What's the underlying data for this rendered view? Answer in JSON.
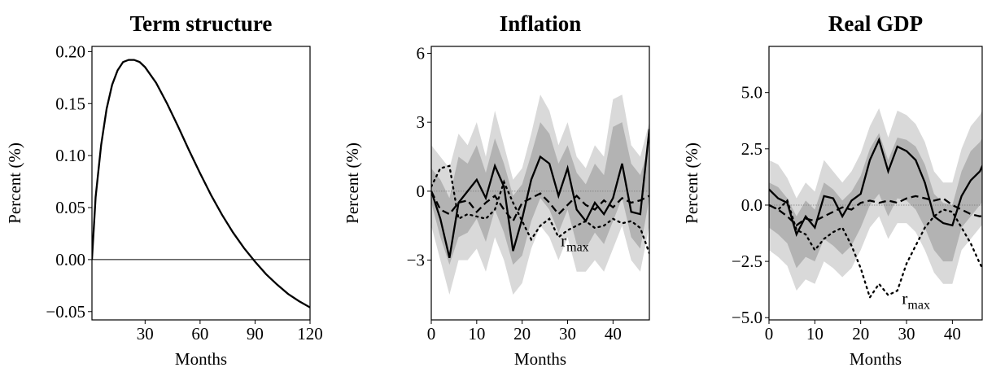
{
  "chart_data": [
    {
      "type": "line",
      "title": "Term structure",
      "xlabel": "Months",
      "ylabel": "Percent (%)",
      "x": [
        1,
        3,
        6,
        9,
        12,
        15,
        18,
        21,
        24,
        27,
        30,
        36,
        42,
        48,
        54,
        60,
        66,
        72,
        78,
        84,
        90,
        96,
        102,
        108,
        114,
        120
      ],
      "xlim": [
        1,
        120
      ],
      "ylim": [
        -0.058,
        0.205
      ],
      "xticks": [
        30,
        60,
        90,
        120
      ],
      "yticks": [
        {
          "value": -0.05,
          "label": "−0.05"
        },
        {
          "value": 0,
          "label": "0.00"
        },
        {
          "value": 0.05,
          "label": "0.05"
        },
        {
          "value": 0.1,
          "label": "0.10"
        },
        {
          "value": 0.15,
          "label": "0.15"
        },
        {
          "value": 0.2,
          "label": "0.20"
        }
      ],
      "zero_line": "solid",
      "series": [
        {
          "style": "solid",
          "color": "#000000",
          "values": [
            0,
            0.06,
            0.11,
            0.145,
            0.168,
            0.182,
            0.19,
            0.192,
            0.192,
            0.19,
            0.185,
            0.17,
            0.15,
            0.128,
            0.105,
            0.083,
            0.062,
            0.043,
            0.026,
            0.011,
            -0.002,
            -0.014,
            -0.024,
            -0.033,
            -0.04,
            -0.046
          ]
        }
      ]
    },
    {
      "type": "line",
      "title": "Inflation",
      "xlabel": "Months",
      "ylabel": "Percent (%)",
      "x": [
        0,
        2,
        4,
        6,
        8,
        10,
        12,
        14,
        16,
        18,
        20,
        22,
        24,
        26,
        28,
        30,
        32,
        34,
        36,
        38,
        40,
        42,
        44,
        46,
        48
      ],
      "xlim": [
        0,
        48
      ],
      "ylim": [
        -5.6,
        6.3
      ],
      "xticks": [
        0,
        10,
        20,
        30,
        40
      ],
      "yticks": [
        {
          "value": -3,
          "label": "−3"
        },
        0,
        3,
        6
      ],
      "zero_line": "dotted",
      "bands": [
        {
          "color": "#d9d9d9",
          "upper": [
            2.0,
            1.5,
            1.0,
            2.5,
            2.0,
            3.0,
            1.5,
            3.5,
            2.0,
            0.5,
            1.0,
            2.5,
            4.2,
            3.5,
            2.0,
            3.0,
            1.5,
            1.0,
            2.0,
            1.5,
            4.0,
            4.2,
            2.0,
            1.5,
            3.0
          ],
          "lower": [
            -1.5,
            -3,
            -4.5,
            -3,
            -3,
            -2.5,
            -3.5,
            -2,
            -3,
            -4.5,
            -4,
            -2.5,
            -1.5,
            -2,
            -3,
            -2,
            -3.5,
            -3.5,
            -3,
            -3.5,
            -2.5,
            -1.5,
            -3,
            -3.5,
            -1.5
          ]
        },
        {
          "color": "#b3b3b3",
          "upper": [
            1.0,
            0.5,
            -0.3,
            1.5,
            1.2,
            2.0,
            0.8,
            2.3,
            1.2,
            -0.2,
            0.3,
            1.6,
            3.0,
            2.5,
            1.2,
            2.0,
            0.8,
            0.3,
            1.2,
            0.7,
            2.8,
            3.0,
            1.2,
            0.7,
            2.0
          ],
          "lower": [
            -0.5,
            -2,
            -3.2,
            -2,
            -1.8,
            -1.2,
            -2.2,
            -0.8,
            -1.8,
            -3.2,
            -2.8,
            -1.3,
            -0.3,
            -0.8,
            -1.8,
            -0.8,
            -2.3,
            -2.5,
            -1.8,
            -2.3,
            -1.3,
            -0.3,
            -2,
            -2.5,
            -0.3
          ]
        }
      ],
      "series": [
        {
          "style": "solid",
          "color": "#000000",
          "values": [
            0,
            -1.2,
            -2.9,
            -0.5,
            0,
            0.5,
            -0.3,
            1.1,
            0.2,
            -2.6,
            -1.2,
            0.5,
            1.5,
            1.2,
            -0.2,
            1.0,
            -0.8,
            -1.3,
            -0.5,
            -1.0,
            -0.3,
            1.2,
            -0.9,
            -1.0,
            2.7
          ]
        },
        {
          "style": "dashed",
          "color": "#000000",
          "values": [
            0,
            -0.8,
            -1.0,
            -0.5,
            -0.4,
            -0.9,
            -0.5,
            -0.2,
            -0.8,
            -1.3,
            -0.5,
            -0.3,
            -0.1,
            -0.5,
            -1.0,
            -0.6,
            -0.2,
            -0.6,
            -0.8,
            -0.4,
            -0.7,
            -0.3,
            -0.5,
            -0.4,
            -0.2
          ]
        },
        {
          "style": "dotted",
          "color": "#000000",
          "values": [
            0.2,
            1.0,
            1.1,
            -1.2,
            -1.0,
            -1.1,
            -1.2,
            -0.8,
            0.4,
            -0.5,
            -1.3,
            -2.1,
            -1.5,
            -1.2,
            -2.0,
            -1.7,
            -1.5,
            -1.3,
            -1.6,
            -1.5,
            -1.2,
            -1.4,
            -1.3,
            -1.6,
            -2.7
          ]
        }
      ],
      "annotation": {
        "text": "r",
        "subscript": "max"
      }
    },
    {
      "type": "line",
      "title": "Real GDP",
      "xlabel": "Months",
      "ylabel": "Percent (%)",
      "x": [
        0,
        2,
        4,
        6,
        8,
        10,
        12,
        14,
        16,
        18,
        20,
        22,
        24,
        26,
        28,
        30,
        32,
        34,
        36,
        38,
        40,
        42,
        44,
        46,
        48
      ],
      "xlim": [
        0,
        46.5
      ],
      "ylim": [
        -5.1,
        7.05
      ],
      "xticks": [
        0,
        10,
        20,
        30,
        40
      ],
      "yticks": [
        {
          "value": -5,
          "label": "−5.0"
        },
        {
          "value": -2.5,
          "label": "−2.5"
        },
        {
          "value": 0,
          "label": "0.0"
        },
        {
          "value": 2.5,
          "label": "2.5"
        },
        {
          "value": 5,
          "label": "5.0"
        }
      ],
      "zero_line": "dotted",
      "bands": [
        {
          "color": "#d9d9d9",
          "upper": [
            2.0,
            1.8,
            1.2,
            0.3,
            1.0,
            0.6,
            2.0,
            1.5,
            1.0,
            1.5,
            2.3,
            3.5,
            4.3,
            3.0,
            4.2,
            4.0,
            3.6,
            2.8,
            1.5,
            1.0,
            1.0,
            2.5,
            3.5,
            4.0,
            4.8
          ],
          "lower": [
            -2.0,
            -2.3,
            -2.7,
            -3.8,
            -3.3,
            -3.5,
            -2.5,
            -2.8,
            -3.2,
            -2.8,
            -2.0,
            -1.0,
            -0.5,
            -1.5,
            -0.8,
            -0.8,
            -1.2,
            -2.0,
            -3.0,
            -3.5,
            -3.5,
            -2.0,
            -1.5,
            -1.0,
            -0.5
          ]
        },
        {
          "color": "#b3b3b3",
          "upper": [
            1.0,
            0.8,
            0.3,
            -0.5,
            0.2,
            -0.2,
            1.0,
            0.7,
            0.2,
            0.6,
            1.3,
            2.5,
            3.2,
            2.0,
            3.0,
            2.9,
            2.6,
            1.8,
            0.5,
            0.1,
            0.0,
            1.5,
            2.4,
            2.8,
            3.5
          ],
          "lower": [
            -1.0,
            -1.3,
            -1.7,
            -2.8,
            -2.3,
            -2.5,
            -1.5,
            -1.8,
            -2.2,
            -1.8,
            -1.0,
            0.0,
            0.5,
            -0.5,
            0.3,
            0.2,
            -0.2,
            -1.0,
            -2.0,
            -2.5,
            -2.5,
            -1.0,
            -0.5,
            0.0,
            0.5
          ]
        }
      ],
      "series": [
        {
          "style": "solid",
          "color": "#000000",
          "values": [
            0.7,
            0.3,
            0.1,
            -1.3,
            -0.5,
            -1.0,
            0.4,
            0.3,
            -0.5,
            0.2,
            0.5,
            2.0,
            2.9,
            1.5,
            2.6,
            2.4,
            2.0,
            1.0,
            -0.5,
            -0.8,
            -0.9,
            0.4,
            1.1,
            1.5,
            2.4
          ]
        },
        {
          "style": "dashed",
          "color": "#000000",
          "values": [
            0,
            -0.2,
            -0.5,
            -0.9,
            -0.6,
            -0.7,
            -0.5,
            -0.3,
            -0.1,
            -0.2,
            0.1,
            0.2,
            0.1,
            0.2,
            0.1,
            0.3,
            0.4,
            0.3,
            0.2,
            0.3,
            0.0,
            -0.2,
            -0.4,
            -0.5,
            -0.4
          ]
        },
        {
          "style": "dotted",
          "color": "#000000",
          "values": [
            0,
            -0.2,
            0.2,
            -1.1,
            -1.3,
            -2.0,
            -1.5,
            -1.2,
            -1.0,
            -1.8,
            -2.8,
            -4.1,
            -3.5,
            -4.0,
            -3.8,
            -2.6,
            -1.8,
            -1.0,
            -0.5,
            -0.2,
            -0.3,
            -1.0,
            -1.7,
            -2.6,
            -3.3
          ]
        }
      ],
      "annotation": {
        "text": "r",
        "subscript": "max"
      }
    }
  ]
}
